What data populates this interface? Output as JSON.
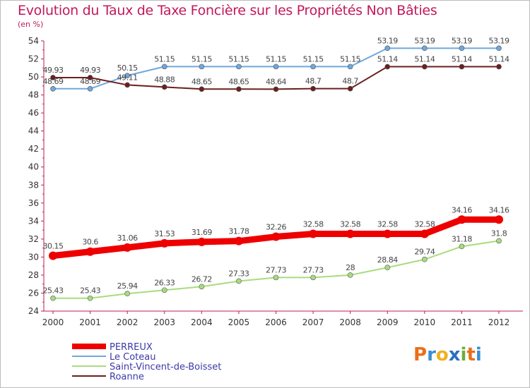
{
  "title": "Evolution du Taux de Taxe Foncière sur les Propriétés Non Bâties",
  "unit_label": "(en %)",
  "logo_text": "Proxiti",
  "colors": {
    "title": "#c2185b",
    "axis": "#c2185b",
    "legend_text": "#3a3aa8",
    "perreux": "#ee0000",
    "le_coteau": "#6fa8dc",
    "saint_vincent": "#a8dc7e",
    "roanne": "#6b1f1f"
  },
  "chart_data": {
    "type": "line",
    "title": "Evolution du Taux de Taxe Foncière sur les Propriétés Non Bâties",
    "ylabel": "(en %)",
    "xlabel": "",
    "ylim": [
      24,
      54
    ],
    "yticks": [
      24,
      26,
      28,
      30,
      32,
      34,
      36,
      38,
      40,
      42,
      44,
      46,
      48,
      50,
      52,
      54
    ],
    "x": [
      "2000",
      "2001",
      "2002",
      "2003",
      "2004",
      "2005",
      "2006",
      "2007",
      "2008",
      "2009",
      "2010",
      "2011",
      "2012"
    ],
    "grid": false,
    "legend_position": "bottom-left",
    "series": [
      {
        "name": "PERREUX",
        "color": "#ee0000",
        "values": [
          30.15,
          30.6,
          31.06,
          31.53,
          31.69,
          31.78,
          32.26,
          32.58,
          32.58,
          32.58,
          32.58,
          34.16,
          34.16
        ],
        "labels": [
          "30.15",
          "30.6",
          "31.06",
          "31.53",
          "31.69",
          "31.78",
          "32.26",
          "32.58",
          "32.58",
          "32.58",
          "32.58",
          "34.16",
          "34.16"
        ]
      },
      {
        "name": "Le Coteau",
        "color": "#6fa8dc",
        "values": [
          48.69,
          48.69,
          50.15,
          51.15,
          51.15,
          51.15,
          51.15,
          51.15,
          51.15,
          53.19,
          53.19,
          53.19,
          53.19
        ],
        "labels": [
          "48.69",
          "48.69",
          "50.15",
          "51.15",
          "51.15",
          "51.15",
          "51.15",
          "51.15",
          "51.15",
          "53.19",
          "53.19",
          "53.19",
          "53.19"
        ]
      },
      {
        "name": "Saint-Vincent-de-Boisset",
        "color": "#a8dc7e",
        "values": [
          25.43,
          25.43,
          25.94,
          26.33,
          26.72,
          27.33,
          27.73,
          27.73,
          28.0,
          28.84,
          29.74,
          31.18,
          31.8
        ],
        "labels": [
          "25.43",
          "25.43",
          "25.94",
          "26.33",
          "26.72",
          "27.33",
          "27.73",
          "27.73",
          "28",
          "28.84",
          "29.74",
          "31.18",
          "31.8"
        ]
      },
      {
        "name": "Roanne",
        "color": "#6b1f1f",
        "values": [
          49.93,
          49.93,
          49.11,
          48.88,
          48.65,
          48.65,
          48.64,
          48.7,
          48.7,
          51.14,
          51.14,
          51.14,
          51.14
        ],
        "labels": [
          "49.93",
          "49.93",
          "49.11",
          "48.88",
          "48.65",
          "48.65",
          "48.64",
          "48.7",
          "48.7",
          "51.14",
          "51.14",
          "51.14",
          "51.14"
        ]
      }
    ]
  }
}
